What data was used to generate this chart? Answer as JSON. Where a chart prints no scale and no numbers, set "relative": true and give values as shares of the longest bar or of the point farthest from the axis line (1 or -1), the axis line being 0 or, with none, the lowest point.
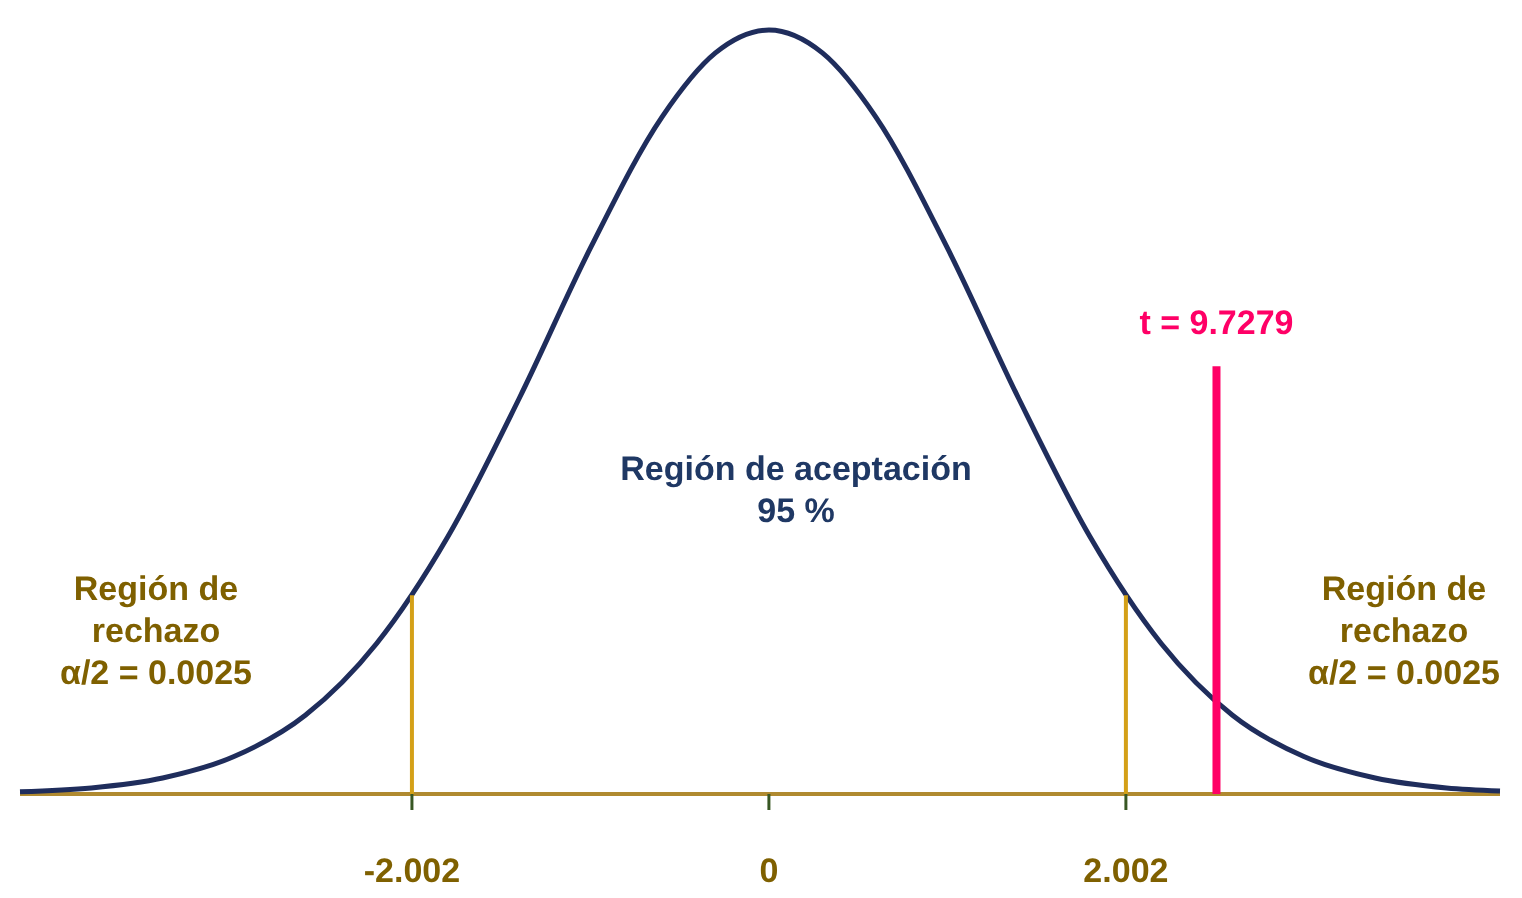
{
  "chart_data": {
    "type": "line",
    "relative": true,
    "xlim": [
      -4.2,
      4.1
    ],
    "xticks": [
      -2.002,
      0,
      2.002
    ],
    "tick_labels": "x",
    "grid": false,
    "legend": false,
    "marker": "none",
    "line_style": "solid",
    "annotations": [
      "Región de aceptación\n95 %",
      "Región de\nrechazo\nα/2 = 0.0025",
      "Región de\nrechazo\nα/2 = 0.0025"
    ],
    "series": [
      {
        "color": "#1f2d5c",
        "x": [
          -4.2,
          -3.8,
          -3.4,
          -3,
          -2.6,
          -2.2,
          -1.8,
          -1.4,
          -1,
          -0.6,
          -0.3,
          0,
          0.3,
          0.6,
          1,
          1.4,
          1.8,
          2.2,
          2.6,
          3,
          3.4,
          3.8,
          4.1
        ],
        "values": [
          0.003,
          0.008,
          0.021,
          0.049,
          0.103,
          0.197,
          0.337,
          0.518,
          0.715,
          0.886,
          0.97,
          1,
          0.97,
          0.886,
          0.715,
          0.518,
          0.337,
          0.197,
          0.103,
          0.049,
          0.021,
          0.008,
          0.004
        ]
      },
      {
        "color": "#d4a017",
        "x": [
          -2.002,
          -2.002
        ],
        "values": [
          0,
          0.26
        ]
      },
      {
        "color": "#d4a017",
        "x": [
          2.002,
          2.002
        ],
        "values": [
          0,
          0.26
        ]
      },
      {
        "name": "t = 9.7279",
        "color": "#ff0066",
        "x": [
          2.51,
          2.51
        ],
        "values": [
          0,
          0.56
        ]
      }
    ]
  }
}
